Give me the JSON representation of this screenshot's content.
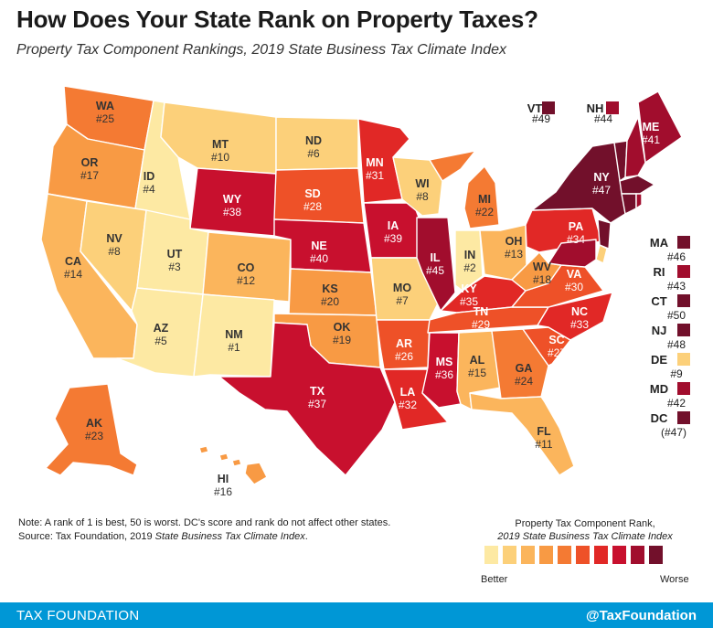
{
  "title": "How Does Your State Rank on Property Taxes?",
  "subtitle": "Property Tax Component Rankings, 2019 State Business Tax Climate Index",
  "states": [
    {
      "abbr": "WA",
      "rank": "#25",
      "value": 25
    },
    {
      "abbr": "OR",
      "rank": "#17",
      "value": 17
    },
    {
      "abbr": "CA",
      "rank": "#14",
      "value": 14
    },
    {
      "abbr": "ID",
      "rank": "#4",
      "value": 4
    },
    {
      "abbr": "NV",
      "rank": "#8",
      "value": 8
    },
    {
      "abbr": "MT",
      "rank": "#10",
      "value": 10
    },
    {
      "abbr": "WY",
      "rank": "#38",
      "value": 38
    },
    {
      "abbr": "UT",
      "rank": "#3",
      "value": 3
    },
    {
      "abbr": "AZ",
      "rank": "#5",
      "value": 5
    },
    {
      "abbr": "CO",
      "rank": "#12",
      "value": 12
    },
    {
      "abbr": "NM",
      "rank": "#1",
      "value": 1
    },
    {
      "abbr": "ND",
      "rank": "#6",
      "value": 6
    },
    {
      "abbr": "SD",
      "rank": "#28",
      "value": 28
    },
    {
      "abbr": "NE",
      "rank": "#40",
      "value": 40
    },
    {
      "abbr": "KS",
      "rank": "#20",
      "value": 20
    },
    {
      "abbr": "OK",
      "rank": "#19",
      "value": 19
    },
    {
      "abbr": "TX",
      "rank": "#37",
      "value": 37
    },
    {
      "abbr": "MN",
      "rank": "#31",
      "value": 31
    },
    {
      "abbr": "IA",
      "rank": "#39",
      "value": 39
    },
    {
      "abbr": "MO",
      "rank": "#7",
      "value": 7
    },
    {
      "abbr": "AR",
      "rank": "#26",
      "value": 26
    },
    {
      "abbr": "LA",
      "rank": "#32",
      "value": 32
    },
    {
      "abbr": "WI",
      "rank": "#8",
      "value": 8
    },
    {
      "abbr": "IL",
      "rank": "#45",
      "value": 45
    },
    {
      "abbr": "MI",
      "rank": "#22",
      "value": 22
    },
    {
      "abbr": "IN",
      "rank": "#2",
      "value": 2
    },
    {
      "abbr": "OH",
      "rank": "#13",
      "value": 13
    },
    {
      "abbr": "KY",
      "rank": "#35",
      "value": 35
    },
    {
      "abbr": "TN",
      "rank": "#29",
      "value": 29
    },
    {
      "abbr": "MS",
      "rank": "#36",
      "value": 36
    },
    {
      "abbr": "AL",
      "rank": "#15",
      "value": 15
    },
    {
      "abbr": "GA",
      "rank": "#24",
      "value": 24
    },
    {
      "abbr": "FL",
      "rank": "#11",
      "value": 11
    },
    {
      "abbr": "SC",
      "rank": "#27",
      "value": 27
    },
    {
      "abbr": "NC",
      "rank": "#33",
      "value": 33
    },
    {
      "abbr": "VA",
      "rank": "#30",
      "value": 30
    },
    {
      "abbr": "WV",
      "rank": "#18",
      "value": 18
    },
    {
      "abbr": "PA",
      "rank": "#34",
      "value": 34
    },
    {
      "abbr": "NY",
      "rank": "#47",
      "value": 47
    },
    {
      "abbr": "ME",
      "rank": "#41",
      "value": 41
    },
    {
      "abbr": "AK",
      "rank": "#23",
      "value": 23
    },
    {
      "abbr": "HI",
      "rank": "#16",
      "value": 16
    }
  ],
  "small_states": [
    {
      "abbr": "VT",
      "rank": "#49",
      "value": 49
    },
    {
      "abbr": "NH",
      "rank": "#44",
      "value": 44
    },
    {
      "abbr": "MA",
      "rank": "#46",
      "value": 46
    },
    {
      "abbr": "RI",
      "rank": "#43",
      "value": 43
    },
    {
      "abbr": "CT",
      "rank": "#50",
      "value": 50
    },
    {
      "abbr": "NJ",
      "rank": "#48",
      "value": 48
    },
    {
      "abbr": "DE",
      "rank": "#9",
      "value": 9
    },
    {
      "abbr": "MD",
      "rank": "#42",
      "value": 42
    },
    {
      "abbr": "DC",
      "rank": "(#47)",
      "value": 47
    }
  ],
  "note": "Note: A rank of 1 is best, 50 is worst. DC's score and rank do not affect other states.",
  "source_prefix": "Source: Tax Foundation, 2019 ",
  "source_italic": "State Business Tax Climate Index",
  "source_suffix": ".",
  "legend": {
    "title_line1": "Property Tax Component Rank,",
    "title_line2": "2019 State Business Tax Climate Index",
    "better": "Better",
    "worse": "Worse",
    "colors": [
      "#fde9a3",
      "#fcd07a",
      "#fbb55c",
      "#f89a44",
      "#f47a33",
      "#ee5128",
      "#e12826",
      "#c8102e",
      "#a10d2d",
      "#72102b"
    ]
  },
  "footer": {
    "brand": "TAX FOUNDATION",
    "handle": "@TaxFoundation"
  }
}
